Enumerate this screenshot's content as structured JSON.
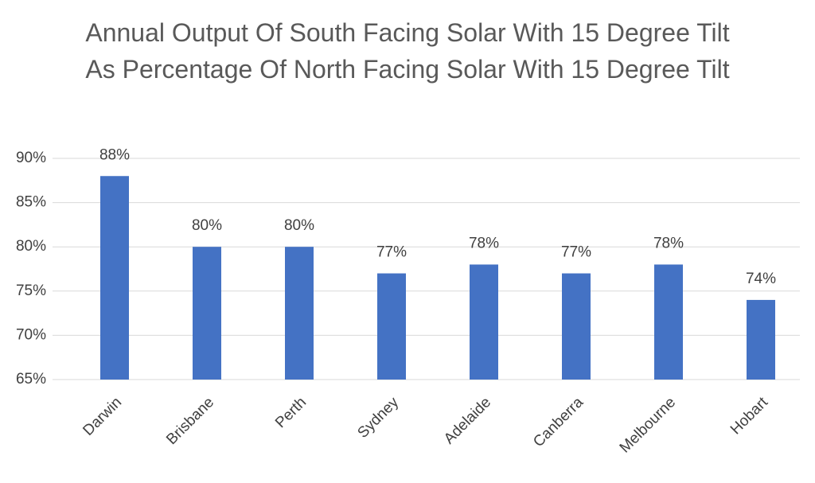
{
  "chart_data": {
    "type": "bar",
    "title": "Annual Output Of South Facing Solar With 15 Degree Tilt As Percentage Of North Facing Solar With 15 Degree Tilt",
    "categories": [
      "Darwin",
      "Brisbane",
      "Perth",
      "Sydney",
      "Adelaide",
      "Canberra",
      "Melbourne",
      "Hobart"
    ],
    "values": [
      88,
      80,
      80,
      77,
      78,
      77,
      78,
      74
    ],
    "value_labels": [
      "88%",
      "80%",
      "80%",
      "77%",
      "78%",
      "77%",
      "78%",
      "74%"
    ],
    "color": "#4472c4",
    "ylim": [
      65,
      90
    ],
    "yticks": [
      {
        "value": 65,
        "label": "65%"
      },
      {
        "value": 70,
        "label": "70%"
      },
      {
        "value": 75,
        "label": "75%"
      },
      {
        "value": 80,
        "label": "80%"
      },
      {
        "value": 85,
        "label": "85%"
      },
      {
        "value": 90,
        "label": "90%"
      }
    ],
    "grid": true
  }
}
